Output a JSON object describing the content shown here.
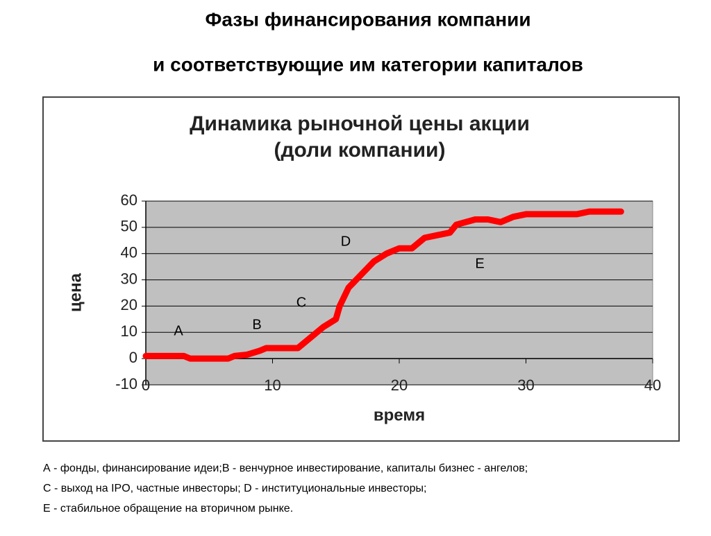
{
  "header": {
    "title": [
      "Фазы финансирования компании",
      "и соответствующие им категории капиталов"
    ]
  },
  "chart_data": {
    "type": "line",
    "title": [
      "Динамика рыночной цены акции",
      "(доли компании)"
    ],
    "x_label": "время",
    "y_label": "цена",
    "x": [
      0,
      3,
      3.5,
      6.5,
      7,
      8,
      9,
      9.5,
      12,
      13,
      14,
      15,
      15.3,
      16,
      17,
      18,
      19,
      20,
      21,
      22,
      23,
      24,
      24.5,
      26,
      27,
      28,
      29,
      30,
      34,
      35,
      37.5
    ],
    "series": [
      {
        "color": "#ff0000",
        "values": [
          1,
          1,
          0,
          0,
          1,
          1.5,
          3,
          4,
          4,
          8,
          12,
          15,
          20,
          27,
          32,
          37,
          40,
          42,
          42,
          46,
          47,
          48,
          51,
          53,
          53,
          52,
          54,
          55,
          55,
          56,
          56
        ]
      }
    ],
    "xlim": [
      0,
      40
    ],
    "xticks": [
      0,
      10,
      20,
      30,
      40
    ],
    "ylim": [
      -10,
      60
    ],
    "yticks": [
      -10,
      0,
      10,
      20,
      30,
      40,
      50,
      60
    ],
    "grid": true,
    "plot_background": "#c0c0c0",
    "annotations": [
      "A",
      "B",
      "C",
      "D",
      "E"
    ]
  },
  "notes": [
    "А  - фонды, финансирование идеи;В - венчурное инвестирование, капиталы бизнес - ангелов;",
    "С - выход на IPO, частные инвесторы; D - институциональные инвесторы;",
    "Е - стабильное обращение на вторичном рынке."
  ]
}
